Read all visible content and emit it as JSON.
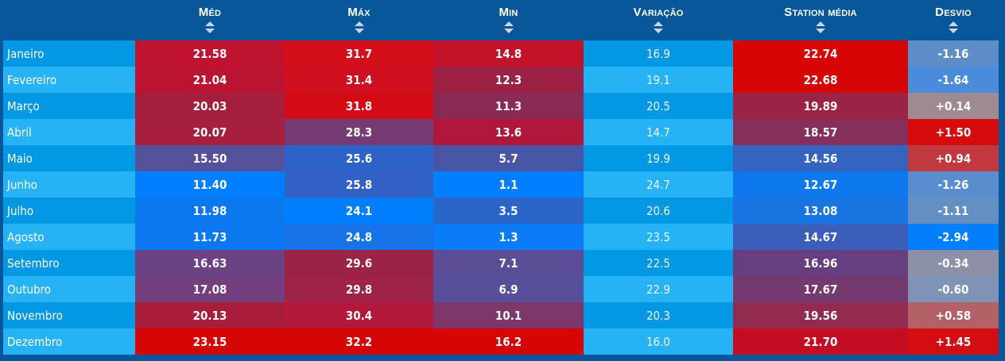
{
  "columns": [
    {
      "key": "month",
      "label": ""
    },
    {
      "key": "med",
      "label": "Méd"
    },
    {
      "key": "max",
      "label": "Máx"
    },
    {
      "key": "min",
      "label": "Min"
    },
    {
      "key": "variacao",
      "label": "Variação"
    },
    {
      "key": "station",
      "label": "Station média"
    },
    {
      "key": "desvio",
      "label": "Desvio"
    }
  ],
  "rows": [
    {
      "month": "Janeiro",
      "med": "21.58",
      "max": "31.7",
      "min": "14.8",
      "variacao": "16.9",
      "station": "22.74",
      "desvio": "-1.16",
      "colors": {
        "month": "#0398e4",
        "med": "#c0132f",
        "max": "#d50f1a",
        "min": "#c3132a",
        "variacao": "#0398e4",
        "station": "#d80505",
        "desvio": "#5d8dc6"
      }
    },
    {
      "month": "Fevereiro",
      "med": "21.04",
      "max": "31.4",
      "min": "12.3",
      "variacao": "19.1",
      "station": "22.68",
      "desvio": "-1.64",
      "colors": {
        "month": "#25b3f6",
        "med": "#bb1432",
        "max": "#cf0f1f",
        "min": "#9b2244",
        "variacao": "#25b3f6",
        "station": "#d60606",
        "desvio": "#4a8cdb"
      }
    },
    {
      "month": "Março",
      "med": "20.03",
      "max": "31.8",
      "min": "11.3",
      "variacao": "20.5",
      "station": "19.89",
      "desvio": "+0.14",
      "colors": {
        "month": "#0398e4",
        "med": "#a51e3d",
        "max": "#d40b15",
        "min": "#8a2b53",
        "variacao": "#0398e4",
        "station": "#9b2346",
        "desvio": "#a08a92"
      }
    },
    {
      "month": "Abril",
      "med": "20.07",
      "max": "28.3",
      "min": "13.6",
      "variacao": "14.7",
      "station": "18.57",
      "desvio": "+1.50",
      "colors": {
        "month": "#25b3f6",
        "med": "#a61f3e",
        "max": "#763b73",
        "min": "#b1173a",
        "variacao": "#25b3f6",
        "station": "#85305c",
        "desvio": "#d60b0b"
      }
    },
    {
      "month": "Maio",
      "med": "15.50",
      "max": "25.6",
      "min": "5.7",
      "variacao": "19.9",
      "station": "14.56",
      "desvio": "+0.94",
      "colors": {
        "month": "#0398e4",
        "med": "#55519a",
        "max": "#2d63c9",
        "min": "#4956a6",
        "variacao": "#0398e4",
        "station": "#3564c0",
        "desvio": "#c0393f"
      }
    },
    {
      "month": "Junho",
      "med": "11.40",
      "max": "25.8",
      "min": "1.1",
      "variacao": "24.7",
      "station": "12.67",
      "desvio": "-1.26",
      "colors": {
        "month": "#25b3f6",
        "med": "#027ffe",
        "max": "#3161c4",
        "min": "#027ffe",
        "variacao": "#25b3f6",
        "station": "#0e79ee",
        "desvio": "#588ece"
      }
    },
    {
      "month": "Julho",
      "med": "11.98",
      "max": "24.1",
      "min": "3.5",
      "variacao": "20.6",
      "station": "13.08",
      "desvio": "-1.11",
      "colors": {
        "month": "#0398e4",
        "med": "#0c78ef",
        "max": "#027ffe",
        "min": "#2a66c7",
        "variacao": "#0398e4",
        "station": "#1874e0",
        "desvio": "#638fc3"
      }
    },
    {
      "month": "Agosto",
      "med": "11.73",
      "max": "24.8",
      "min": "1.3",
      "variacao": "23.5",
      "station": "14.67",
      "desvio": "-2.94",
      "colors": {
        "month": "#25b3f6",
        "med": "#0b78f1",
        "max": "#1674e8",
        "min": "#0b7cf7",
        "variacao": "#25b3f6",
        "station": "#3b5ebd",
        "desvio": "#027ffe"
      }
    },
    {
      "month": "Setembro",
      "med": "16.63",
      "max": "29.6",
      "min": "7.1",
      "variacao": "22.5",
      "station": "16.96",
      "desvio": "-0.34",
      "colors": {
        "month": "#0398e4",
        "med": "#6b4384",
        "max": "#9b2446",
        "min": "#5b4d96",
        "variacao": "#0398e4",
        "station": "#663f80",
        "desvio": "#8d91a7"
      }
    },
    {
      "month": "Outubro",
      "med": "17.08",
      "max": "29.8",
      "min": "6.9",
      "variacao": "22.9",
      "station": "17.67",
      "desvio": "-0.60",
      "colors": {
        "month": "#25b3f6",
        "med": "#733f7c",
        "max": "#9f2346",
        "min": "#574f9a",
        "variacao": "#25b3f6",
        "station": "#74396f",
        "desvio": "#7e93b6"
      }
    },
    {
      "month": "Novembro",
      "med": "20.13",
      "max": "30.4",
      "min": "10.1",
      "variacao": "20.3",
      "station": "19.56",
      "desvio": "+0.58",
      "colors": {
        "month": "#0398e4",
        "med": "#a81d3a",
        "max": "#b2193a",
        "min": "#7d3869",
        "variacao": "#0398e4",
        "station": "#932a50",
        "desvio": "#b26266"
      }
    },
    {
      "month": "Dezembro",
      "med": "23.15",
      "max": "32.2",
      "min": "16.2",
      "variacao": "16.0",
      "station": "21.70",
      "desvio": "+1.45",
      "colors": {
        "month": "#25b3f6",
        "med": "#d60606",
        "max": "#d60606",
        "min": "#d60606",
        "variacao": "#25b3f6",
        "station": "#c40c22",
        "desvio": "#d40d10"
      }
    }
  ]
}
